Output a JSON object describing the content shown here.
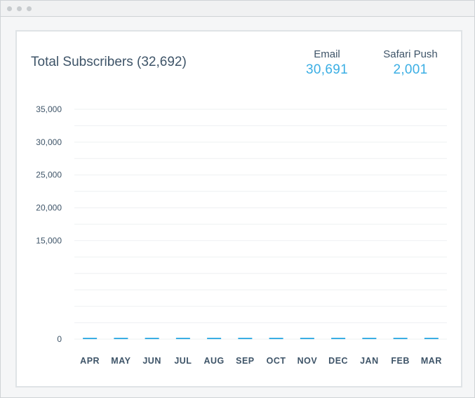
{
  "card": {
    "title": "Total Subscribers (32,692)",
    "stats": [
      {
        "label": "Email",
        "value": "30,691"
      },
      {
        "label": "Safari Push",
        "value": "2,001"
      }
    ]
  },
  "chart_data": {
    "type": "bar",
    "title": "Total Subscribers (32,692)",
    "xlabel": "",
    "ylabel": "",
    "categories": [
      "APR",
      "MAY",
      "JUN",
      "JUL",
      "AUG",
      "SEP",
      "OCT",
      "NOV",
      "DEC",
      "JAN",
      "FEB",
      "MAR"
    ],
    "values": [
      0,
      0,
      0,
      0,
      0,
      0,
      0,
      0,
      0,
      0,
      0,
      0
    ],
    "y_ticks": [
      "35,000",
      "30,000",
      "25,000",
      "20,000",
      "15,000",
      "0"
    ],
    "ylim": [
      0,
      35000
    ],
    "grid": true,
    "bar_color": "#3aaee4"
  },
  "colors": {
    "accent": "#3aaee4",
    "text": "#3e5468",
    "grid": "#eef0f2"
  }
}
